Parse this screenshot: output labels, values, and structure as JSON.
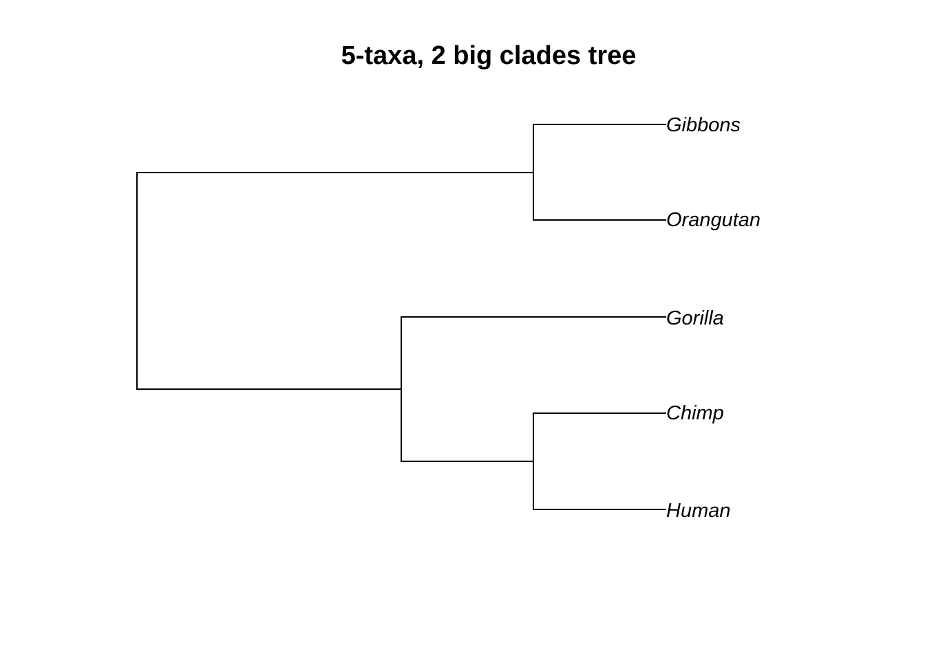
{
  "title": "5-taxa, 2 big clades tree",
  "tree": {
    "newick": "((Gibbons,Orangutan),(Gorilla,(Chimp,Human)));",
    "tips": [
      "Gibbons",
      "Orangutan",
      "Gorilla",
      "Chimp",
      "Human"
    ],
    "clades": [
      {
        "members": [
          "Gibbons",
          "Orangutan"
        ]
      },
      {
        "members": [
          "Gorilla",
          "Chimp",
          "Human"
        ]
      },
      {
        "members": [
          "Chimp",
          "Human"
        ]
      }
    ]
  },
  "colors": {
    "branch": "#000000",
    "text": "#000000",
    "background": "#ffffff"
  }
}
